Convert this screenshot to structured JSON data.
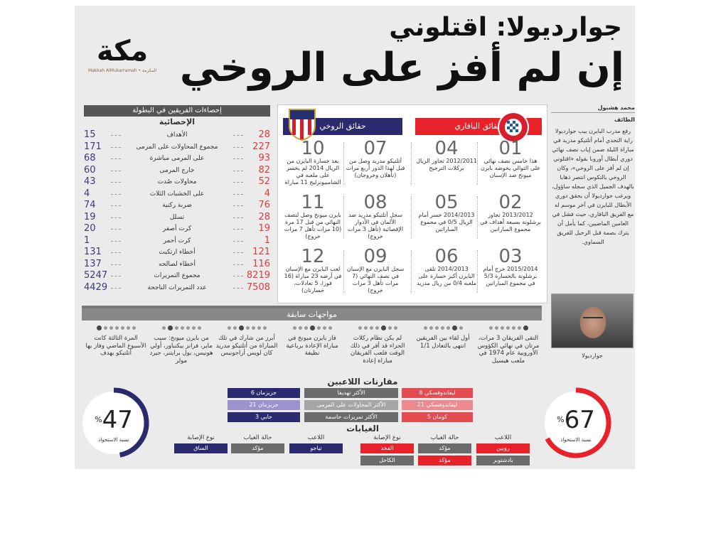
{
  "headline": {
    "line1": "جوارديولا: اقتلوني",
    "line2": "إن لم أفز على الروخي"
  },
  "logo": {
    "name": "مكة",
    "sub": "Makkah AlMukarramah • المكرمة"
  },
  "stats": {
    "title": "إحصاءات الفريقين في البطولة",
    "col_header": "الإحصائية",
    "rows": [
      {
        "label": "الأهداف",
        "bayern": "28",
        "atletico": "15"
      },
      {
        "label": "مجموع المحاولات على المرمى",
        "bayern": "227",
        "atletico": "171"
      },
      {
        "label": "على المرمى مباشرة",
        "bayern": "93",
        "atletico": "68"
      },
      {
        "label": "خارج المرمى",
        "bayern": "82",
        "atletico": "60"
      },
      {
        "label": "محاولات صُدت",
        "bayern": "52",
        "atletico": "43"
      },
      {
        "label": "على الخشبات الثلاث",
        "bayern": "4",
        "atletico": "4"
      },
      {
        "label": "ضربة ركنية",
        "bayern": "76",
        "atletico": "74"
      },
      {
        "label": "تسلل",
        "bayern": "28",
        "atletico": "19"
      },
      {
        "label": "كرت أصفر",
        "bayern": "19",
        "atletico": "20"
      },
      {
        "label": "كرت أحمر",
        "bayern": "1",
        "atletico": "1"
      },
      {
        "label": "أخطاء ارتكبت",
        "bayern": "121",
        "atletico": "131"
      },
      {
        "label": "أخطاء لصالحه",
        "bayern": "116",
        "atletico": "137"
      },
      {
        "label": "مجموع التمريرات",
        "bayern": "8219",
        "atletico": "5247"
      },
      {
        "label": "عدد التمريرات الناجحة",
        "bayern": "7508",
        "atletico": "4429"
      }
    ]
  },
  "facts": {
    "bayern_title": "حقائق البافاري",
    "atletico_title": "حقائق الروخي",
    "items": [
      {
        "n": "01",
        "text": "هذا خامس نصف نهائي على التوالي يخوضه بايرن ميونخ ضد الإسبان"
      },
      {
        "n": "02",
        "text": "2013/2012 تجاوز برشلونة بسبعة أهداف في مجموع المباراتين"
      },
      {
        "n": "03",
        "text": "2015/2014 خرج أمام برشلونة بالخسارة 5/3 في مجموع المباراتين"
      },
      {
        "n": "04",
        "text": "2012/2011 تجاوز الريال بركلات الترجيح"
      },
      {
        "n": "05",
        "text": "2014/2013 خسر أمام الريال 0/5 في مجموع المباراتين"
      },
      {
        "n": "06",
        "text": "2014/2013 تلقى البايرن أكبر خسارة على ملعبه 0/4 من ريال مدريد"
      },
      {
        "n": "07",
        "text": "أتلتيكو مدريد وصل من قبل لهذا الدور أربع مرات (تأهلان وخروجان)"
      },
      {
        "n": "08",
        "text": "سجل أتلتيكو مدريد ضد الألمان في الأدوار الإقصائية (تأهل 3 مرات خروج)"
      },
      {
        "n": "09",
        "text": "سجل البايرن مع الإسبان في نصف النهائي (7 مرات تأهل 3 مرات خروج)"
      },
      {
        "n": "10",
        "text": "بعد خسارة البايرن من الريال 2014 لم يخسر على ملعبه في الشامبيونزليج 11 مباراة"
      },
      {
        "n": "11",
        "text": "بايرن ميونخ وصل لنصف النهائي من قبل 17 مرة (10 مرات تأهل 7 مرات خروج)"
      },
      {
        "n": "12",
        "text": "لعب البايرن مع الإسبان في أرضه 23 مباراة (16 فوزا، 5 تعادلات، خسارتان)"
      }
    ]
  },
  "article": {
    "author": "محمد هشبول",
    "city": "الطائف",
    "body": "رفع مدرب البايرن بيب جوارديولا راية التحدي أمام أتلتيكو مدريد في مباراة الليلة ضمن إياب نصف نهائي دوري أبطال أوروبا بقوله «اقتلوني إن لم أفز على الروخي»، وكان الروخي بالتكوس انتصر ذهابا بالهدف الجميل الذي سجله ساؤول، ويرغب جوارديولا أن يحقق دوري الأبطال للبايرن في آخر موسم له مع الفريق البافاري، حيث فشل في العامين الماضيين، كما يأمل أن يترك بصمة قبل الرحيل للفريق السماوي.",
    "photo_caption": "جوارديولا"
  },
  "meetings": {
    "title": "مواجهات سابقة",
    "items": [
      "التقى الفريقان 3 مرات، مرتان في نهائي الكؤوس الأوروبية عام 1974 في ملعب هيسيل",
      "أول لقاء بين الفريقين انتهى بالتعادل 1/1",
      "لم يكن نظام ركلات الجزاء قد أقر في ذلك الوقت فلعب الفريقان مباراة إعادة",
      "فاز بايرن ميونخ في مباراة الإعادة برباعية نظيفة",
      "أبرز من شارك في تلك المباراة من أتلتيكو مدريد كان لويس أراجونيس",
      "من بايرن ميونخ: سيب ماير، فرانز بيكنباور، أولي هونيس، بول برايتنر، جيرد مولر",
      "المرة الثالثة كانت الأسبوع الماضي وفاز بها أتلتيكو بهدف"
    ]
  },
  "comparisons": {
    "title": "مقارنات اللاعبين",
    "rows": [
      {
        "label": "الأكثر تهديفا",
        "bayern": "ليفاندوفسكي 8",
        "atletico": "جريزمان 6"
      },
      {
        "label": "الأكثر المحاولات على المرمى",
        "bayern": "ليفاندوفسكي 21",
        "atletico": "جريزمان 21"
      },
      {
        "label": "الأكثر تمريرات حاسمة",
        "bayern": "كومان 5",
        "atletico": "جابي 3"
      }
    ]
  },
  "absences": {
    "title": "الغيابات",
    "headers": {
      "player": "اللاعب",
      "status": "حالة الغياب",
      "injury": "نوع الإصابة"
    },
    "bayern": [
      {
        "player": "روبين",
        "status": "مؤكد",
        "injury": "الفخذ"
      },
      {
        "player": "بادشتوبر",
        "status": "مؤكد",
        "injury": "الكاحل"
      }
    ],
    "atletico": [
      {
        "player": "تياجو",
        "status": "مؤكد",
        "injury": "الساق"
      }
    ]
  },
  "possession": {
    "label": "نسبة الاستحواذ",
    "pct": "%",
    "bayern": 67,
    "atletico": 47,
    "bayern_color": "#e8222a",
    "atletico_color": "#2b2a6e"
  }
}
